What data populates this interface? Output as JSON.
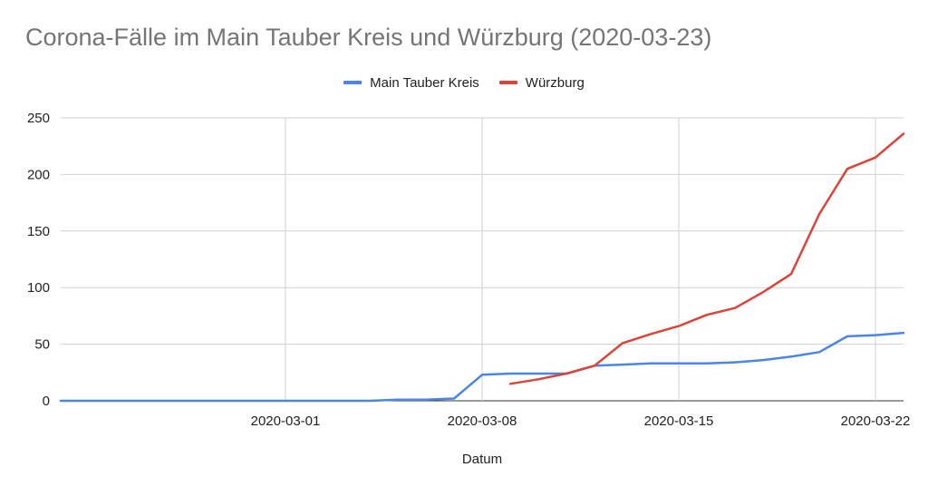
{
  "chart_data": {
    "type": "line",
    "title": "Corona-Fälle im Main Tauber Kreis und Würzburg (2020-03-23)",
    "xlabel": "Datum",
    "ylabel": "",
    "x_type": "date",
    "xlim": [
      "2020-02-22",
      "2020-03-23"
    ],
    "ylim": [
      0,
      250
    ],
    "yticks": [
      0,
      50,
      100,
      150,
      200,
      250
    ],
    "xticks": [
      "2020-03-01",
      "2020-03-08",
      "2020-03-15",
      "2020-03-22"
    ],
    "grid": true,
    "legend_position": "top",
    "series": [
      {
        "name": "Main Tauber Kreis",
        "color": "#4a86e8",
        "points": [
          [
            "2020-02-22",
            0
          ],
          [
            "2020-02-23",
            0
          ],
          [
            "2020-02-24",
            0
          ],
          [
            "2020-02-25",
            0
          ],
          [
            "2020-02-26",
            0
          ],
          [
            "2020-02-27",
            0
          ],
          [
            "2020-02-28",
            0
          ],
          [
            "2020-02-29",
            0
          ],
          [
            "2020-03-01",
            0
          ],
          [
            "2020-03-02",
            0
          ],
          [
            "2020-03-03",
            0
          ],
          [
            "2020-03-04",
            0
          ],
          [
            "2020-03-05",
            1
          ],
          [
            "2020-03-06",
            1
          ],
          [
            "2020-03-07",
            2
          ],
          [
            "2020-03-08",
            23
          ],
          [
            "2020-03-09",
            24
          ],
          [
            "2020-03-10",
            24
          ],
          [
            "2020-03-11",
            24
          ],
          [
            "2020-03-12",
            31
          ],
          [
            "2020-03-13",
            32
          ],
          [
            "2020-03-14",
            33
          ],
          [
            "2020-03-15",
            33
          ],
          [
            "2020-03-16",
            33
          ],
          [
            "2020-03-17",
            34
          ],
          [
            "2020-03-18",
            36
          ],
          [
            "2020-03-19",
            39
          ],
          [
            "2020-03-20",
            43
          ],
          [
            "2020-03-21",
            57
          ],
          [
            "2020-03-22",
            58
          ],
          [
            "2020-03-23",
            60
          ]
        ]
      },
      {
        "name": "Würzburg",
        "color": "#db4437",
        "points": [
          [
            "2020-03-09",
            15
          ],
          [
            "2020-03-10",
            19
          ],
          [
            "2020-03-11",
            24
          ],
          [
            "2020-03-12",
            31
          ],
          [
            "2020-03-13",
            51
          ],
          [
            "2020-03-14",
            59
          ],
          [
            "2020-03-15",
            66
          ],
          [
            "2020-03-16",
            76
          ],
          [
            "2020-03-17",
            82
          ],
          [
            "2020-03-18",
            96
          ],
          [
            "2020-03-19",
            112
          ],
          [
            "2020-03-20",
            165
          ],
          [
            "2020-03-21",
            205
          ],
          [
            "2020-03-22",
            215
          ],
          [
            "2020-03-23",
            236
          ]
        ]
      }
    ]
  }
}
